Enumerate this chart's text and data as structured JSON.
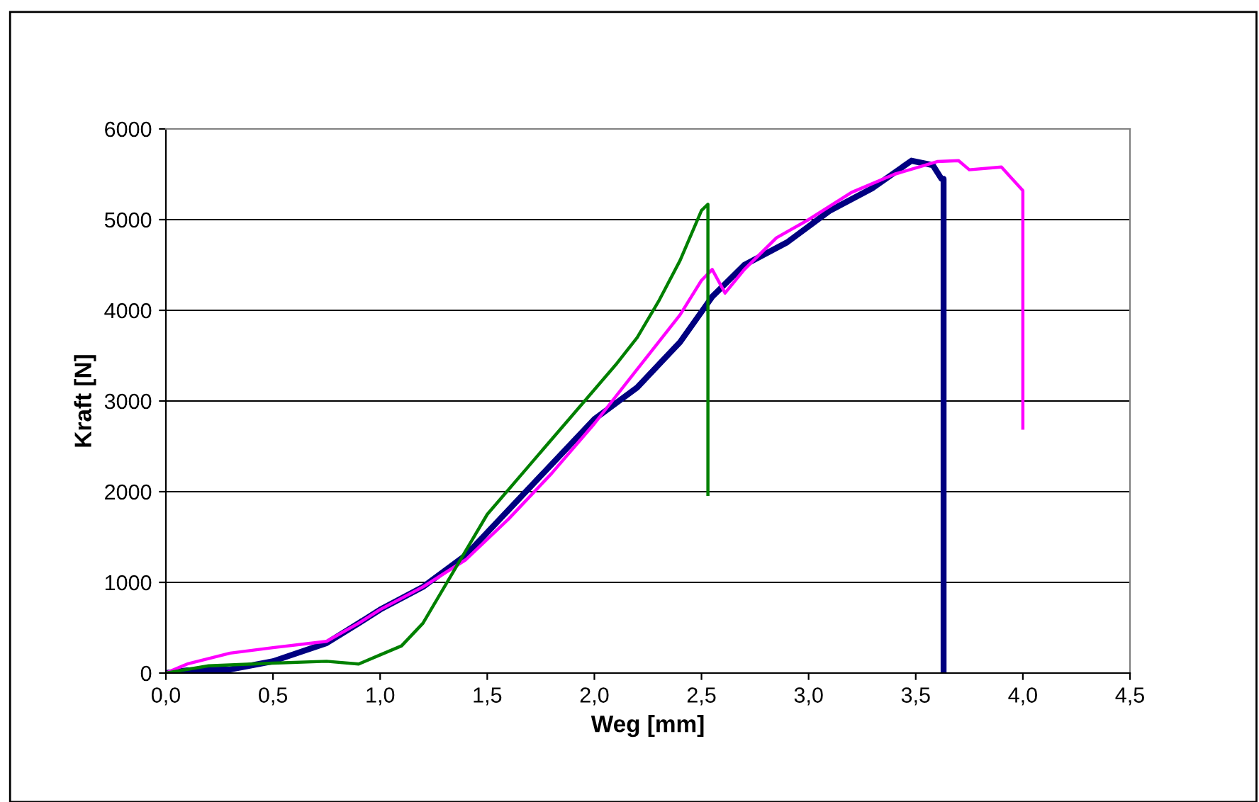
{
  "chart_data": {
    "type": "line",
    "xlabel": "Weg [mm]",
    "ylabel": "Kraft [N]",
    "xlim": [
      0,
      4.5
    ],
    "xticks": [
      {
        "value": 0,
        "label": "0,0"
      },
      {
        "value": 0.5,
        "label": "0,5"
      },
      {
        "value": 1,
        "label": "1,0"
      },
      {
        "value": 1.5,
        "label": "1,5"
      },
      {
        "value": 2,
        "label": "2,0"
      },
      {
        "value": 2.5,
        "label": "2,5"
      },
      {
        "value": 3,
        "label": "3,0"
      },
      {
        "value": 3.5,
        "label": "3,5"
      },
      {
        "value": 4,
        "label": "4,0"
      },
      {
        "value": 4.5,
        "label": "4,5"
      }
    ],
    "ylim": [
      0,
      6000
    ],
    "yticks": [
      0,
      1000,
      2000,
      3000,
      4000,
      5000,
      6000
    ],
    "grid": "y",
    "legend": false,
    "marker": "none",
    "line_style": "solid",
    "series": [
      {
        "color": "#000080",
        "x": [
          0,
          0.1,
          0.3,
          0.5,
          0.75,
          0.9,
          1.0,
          1.2,
          1.4,
          1.6,
          1.8,
          2.0,
          2.2,
          2.4,
          2.55,
          2.7,
          2.9,
          3.1,
          3.3,
          3.48,
          3.58,
          3.62,
          3.63,
          3.63
        ],
        "values": [
          0,
          30,
          40,
          130,
          330,
          550,
          700,
          950,
          1300,
          1800,
          2300,
          2800,
          3150,
          3650,
          4150,
          4500,
          4750,
          5100,
          5350,
          5650,
          5600,
          5450,
          5450,
          0
        ]
      },
      {
        "color": "#ff00ff",
        "x": [
          0,
          0.1,
          0.3,
          0.5,
          0.75,
          0.9,
          1.0,
          1.2,
          1.4,
          1.6,
          1.8,
          2.0,
          2.2,
          2.4,
          2.5,
          2.55,
          2.61,
          2.7,
          2.85,
          3.0,
          3.2,
          3.4,
          3.6,
          3.7,
          3.75,
          3.9,
          3.95,
          4.0,
          4.0
        ],
        "values": [
          0,
          100,
          220,
          280,
          350,
          550,
          700,
          950,
          1250,
          1700,
          2200,
          2750,
          3350,
          3950,
          4330,
          4450,
          4190,
          4450,
          4800,
          5000,
          5300,
          5500,
          5640,
          5650,
          5550,
          5580,
          5450,
          5320,
          2700
        ]
      },
      {
        "color": "#008000",
        "x": [
          0,
          0.2,
          0.5,
          0.75,
          0.9,
          1.0,
          1.1,
          1.2,
          1.3,
          1.4,
          1.5,
          1.7,
          1.9,
          2.1,
          2.2,
          2.3,
          2.4,
          2.5,
          2.53,
          2.53
        ],
        "values": [
          0,
          80,
          110,
          130,
          100,
          200,
          300,
          550,
          950,
          1350,
          1750,
          2300,
          2850,
          3400,
          3700,
          4100,
          4550,
          5100,
          5170,
          1970
        ]
      }
    ]
  }
}
